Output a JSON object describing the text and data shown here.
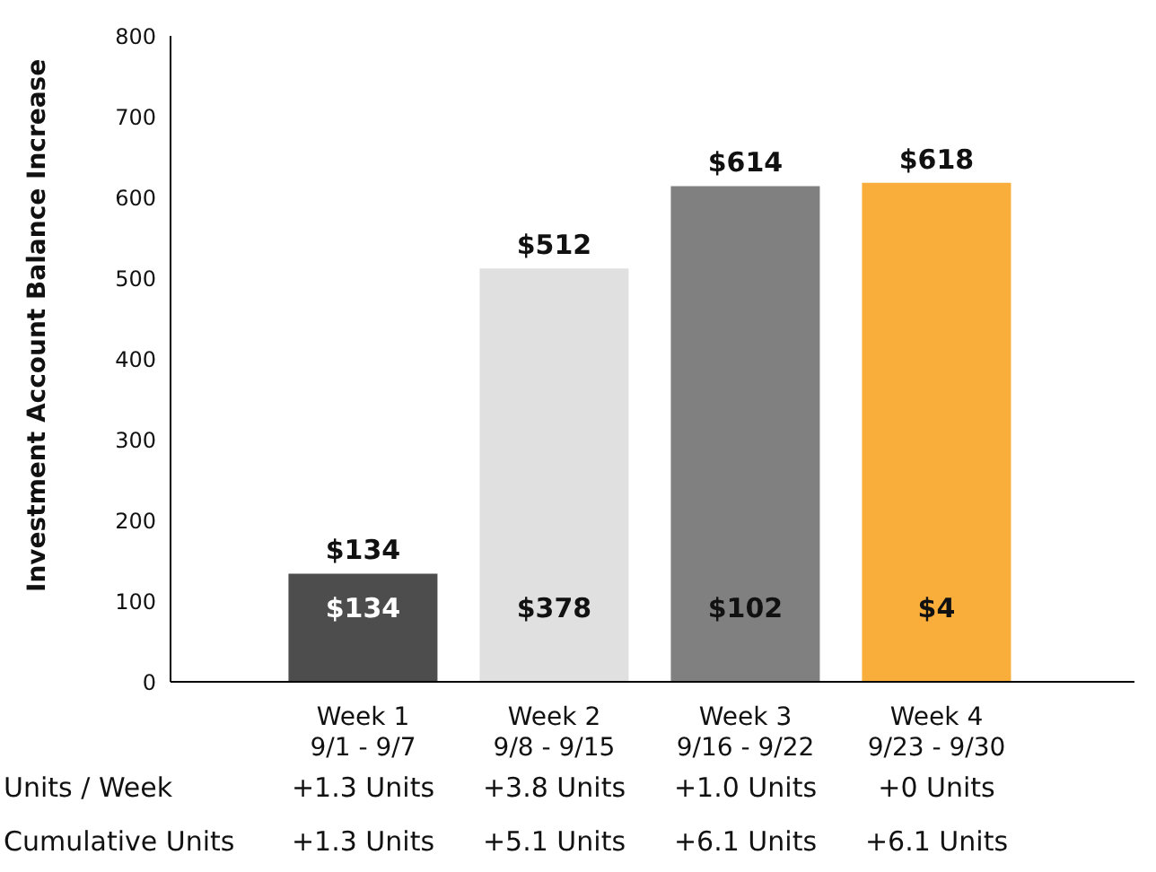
{
  "chart_data": {
    "type": "bar",
    "ylabel": "Investment Account Balance Increase",
    "categories": [
      "Week 1\n9/1 - 9/7",
      "Week 2\n9/8 - 9/15",
      "Week 3\n9/16 - 9/22",
      "Week 4\n9/23 - 9/30"
    ],
    "values": [
      134,
      512,
      614,
      618
    ],
    "colors": [
      "#4d4d4d",
      "#e0e0e0",
      "#808080",
      "#f9ae3b"
    ],
    "value_labels": [
      "$134",
      "$512",
      "$614",
      "$618"
    ],
    "ylim": [
      0,
      800
    ],
    "yticks": [
      0,
      100,
      200,
      300,
      400,
      500,
      600,
      700,
      800
    ],
    "grid": false,
    "legend": false,
    "annotations": [
      "$134",
      "$378",
      "$102",
      "$4",
      "Units / Week",
      "+1.3 Units",
      "+3.8 Units",
      "+1.0 Units",
      "+0 Units",
      "Cumulative Units",
      "+1.3 Units",
      "+5.1 Units",
      "+6.1 Units",
      "+6.1 Units"
    ]
  }
}
